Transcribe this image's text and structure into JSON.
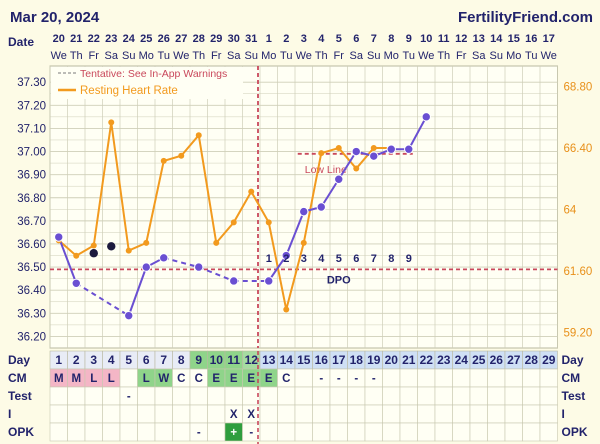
{
  "header": {
    "date": "Mar 20, 2024",
    "site": "FertilityFriend.com",
    "date_row_label": "Date"
  },
  "colors": {
    "bg": "#fdfbe6",
    "grid": "#cfcfb8",
    "temp_line": "#6a4fd2",
    "hr_line": "#f29a1e",
    "coverline": "#c9485b",
    "label_text": "#22236b",
    "right_axis": "#e8901a",
    "fertile_green": "#8fd48a",
    "cm_pink": "#f4b6c6",
    "day_blue": "#cfe0f5"
  },
  "chart_data": {
    "type": "line",
    "dates": [
      "20",
      "21",
      "22",
      "23",
      "24",
      "25",
      "26",
      "27",
      "28",
      "29",
      "30",
      "31",
      "1",
      "2",
      "3",
      "4",
      "5",
      "6",
      "7",
      "8",
      "9",
      "10",
      "11",
      "12",
      "13",
      "14",
      "15",
      "16",
      "17"
    ],
    "weekdays": [
      "We",
      "Th",
      "Fr",
      "Sa",
      "Su",
      "Mo",
      "Tu",
      "We",
      "Th",
      "Fr",
      "Sa",
      "Su",
      "Mo",
      "Tu",
      "We",
      "Th",
      "Fr",
      "Sa",
      "Su",
      "Mo",
      "Tu",
      "We",
      "Th",
      "Fr",
      "Sa",
      "Su",
      "Mo",
      "Tu",
      "We"
    ],
    "cycle_days": [
      "1",
      "2",
      "3",
      "4",
      "5",
      "6",
      "7",
      "8",
      "9",
      "10",
      "11",
      "12",
      "13",
      "14",
      "15",
      "16",
      "17",
      "18",
      "19",
      "20",
      "21",
      "22",
      "23",
      "24",
      "25",
      "26",
      "27",
      "28",
      "29"
    ],
    "left_axis": {
      "ticks": [
        "36.20",
        "36.30",
        "36.40",
        "36.50",
        "36.60",
        "36.70",
        "36.80",
        "36.90",
        "37.00",
        "37.10",
        "37.20",
        "37.30"
      ],
      "ylim": [
        36.15,
        37.37
      ]
    },
    "right_axis": {
      "ticks": [
        "59.20",
        "61.60",
        "64",
        "66.40",
        "68.80"
      ],
      "ylim": [
        58.6,
        69.6
      ]
    },
    "legend": {
      "tentative": "Tentative: See In-App Warnings",
      "hr": "Resting Heart Rate"
    },
    "temperature": [
      36.63,
      36.43,
      null,
      null,
      36.29,
      36.5,
      36.54,
      null,
      36.5,
      null,
      36.44,
      null,
      36.44,
      36.55,
      36.74,
      36.76,
      36.88,
      37.0,
      36.98,
      37.01,
      37.01,
      37.15
    ],
    "temperature_note": "values indexed by cycle day starting at day 1",
    "temp_dashed_segments": [
      [
        2,
        5
      ],
      [
        7,
        9
      ],
      [
        9,
        11
      ],
      [
        11,
        13
      ]
    ],
    "discarded_temps": [
      {
        "day": 3,
        "value": 36.56
      },
      {
        "day": 4,
        "value": 36.59
      }
    ],
    "heart_rate": [
      62.8,
      62.2,
      62.6,
      67.4,
      62.4,
      62.7,
      65.9,
      66.1,
      66.9,
      62.7,
      63.5,
      64.7,
      63.5,
      60.1,
      62.7,
      66.2,
      66.4,
      65.6,
      66.4,
      66.4
    ],
    "coverline": 36.49,
    "coverline_label": "Low Line",
    "ovulation_day": 12,
    "dpo_numbers": [
      "1",
      "2",
      "3",
      "4",
      "5",
      "6",
      "7",
      "8",
      "9"
    ],
    "dpo_label": "DPO"
  },
  "rows": {
    "day_label": "Day",
    "cm_label": "CM",
    "test_label": "Test",
    "i_label": "I",
    "opk_label": "OPK",
    "cm": [
      "M",
      "M",
      "L",
      "L",
      "",
      "L",
      "W",
      "C",
      "C",
      "E",
      "E",
      "E",
      "E",
      "C",
      "",
      "-",
      "-",
      "-",
      "-"
    ],
    "cm_colors": [
      "pink",
      "pink",
      "pink",
      "pink",
      "",
      "green",
      "green",
      "",
      "",
      "green",
      "green",
      "green",
      "green",
      "",
      "",
      "",
      "",
      "",
      ""
    ],
    "test": [
      "",
      "",
      "",
      "",
      "-"
    ],
    "intercourse": [
      "",
      "",
      "",
      "",
      "",
      "",
      "",
      "",
      "",
      "",
      "X",
      "X"
    ],
    "opk": [
      "",
      "",
      "",
      "",
      "",
      "",
      "",
      "",
      "-",
      "",
      "+",
      "-"
    ]
  }
}
